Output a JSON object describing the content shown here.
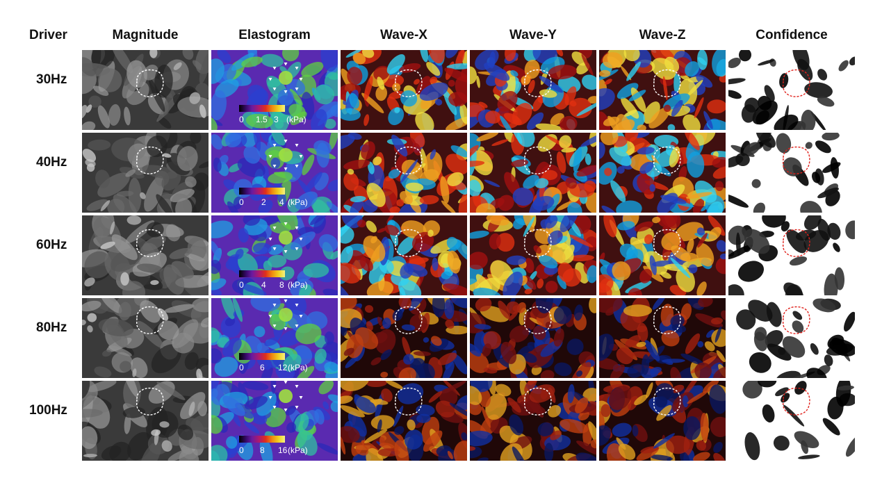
{
  "columns": {
    "driver": "Driver",
    "magnitude": "Magnitude",
    "elastogram": "Elastogram",
    "wave_x": "Wave-X",
    "wave_y": "Wave-Y",
    "wave_z": "Wave-Z",
    "confidence": "Confidence"
  },
  "rows": [
    {
      "label": "30Hz",
      "colorbar": [
        "0",
        "1.5",
        "3"
      ],
      "unit": "(kPa)"
    },
    {
      "label": "40Hz",
      "colorbar": [
        "0",
        "2",
        "4"
      ],
      "unit": "(kPa)"
    },
    {
      "label": "60Hz",
      "colorbar": [
        "0",
        "4",
        "8"
      ],
      "unit": "(kPa)"
    },
    {
      "label": "80Hz",
      "colorbar": [
        "0",
        "6",
        "12"
      ],
      "unit": "(kPa)"
    },
    {
      "label": "100Hz",
      "colorbar": [
        "0",
        "8",
        "16"
      ],
      "unit": "(kPa)"
    }
  ],
  "colors": {
    "roi_outline_mri": "#ffffff",
    "roi_outline_confidence": "#e0201a",
    "background": "#ffffff"
  }
}
